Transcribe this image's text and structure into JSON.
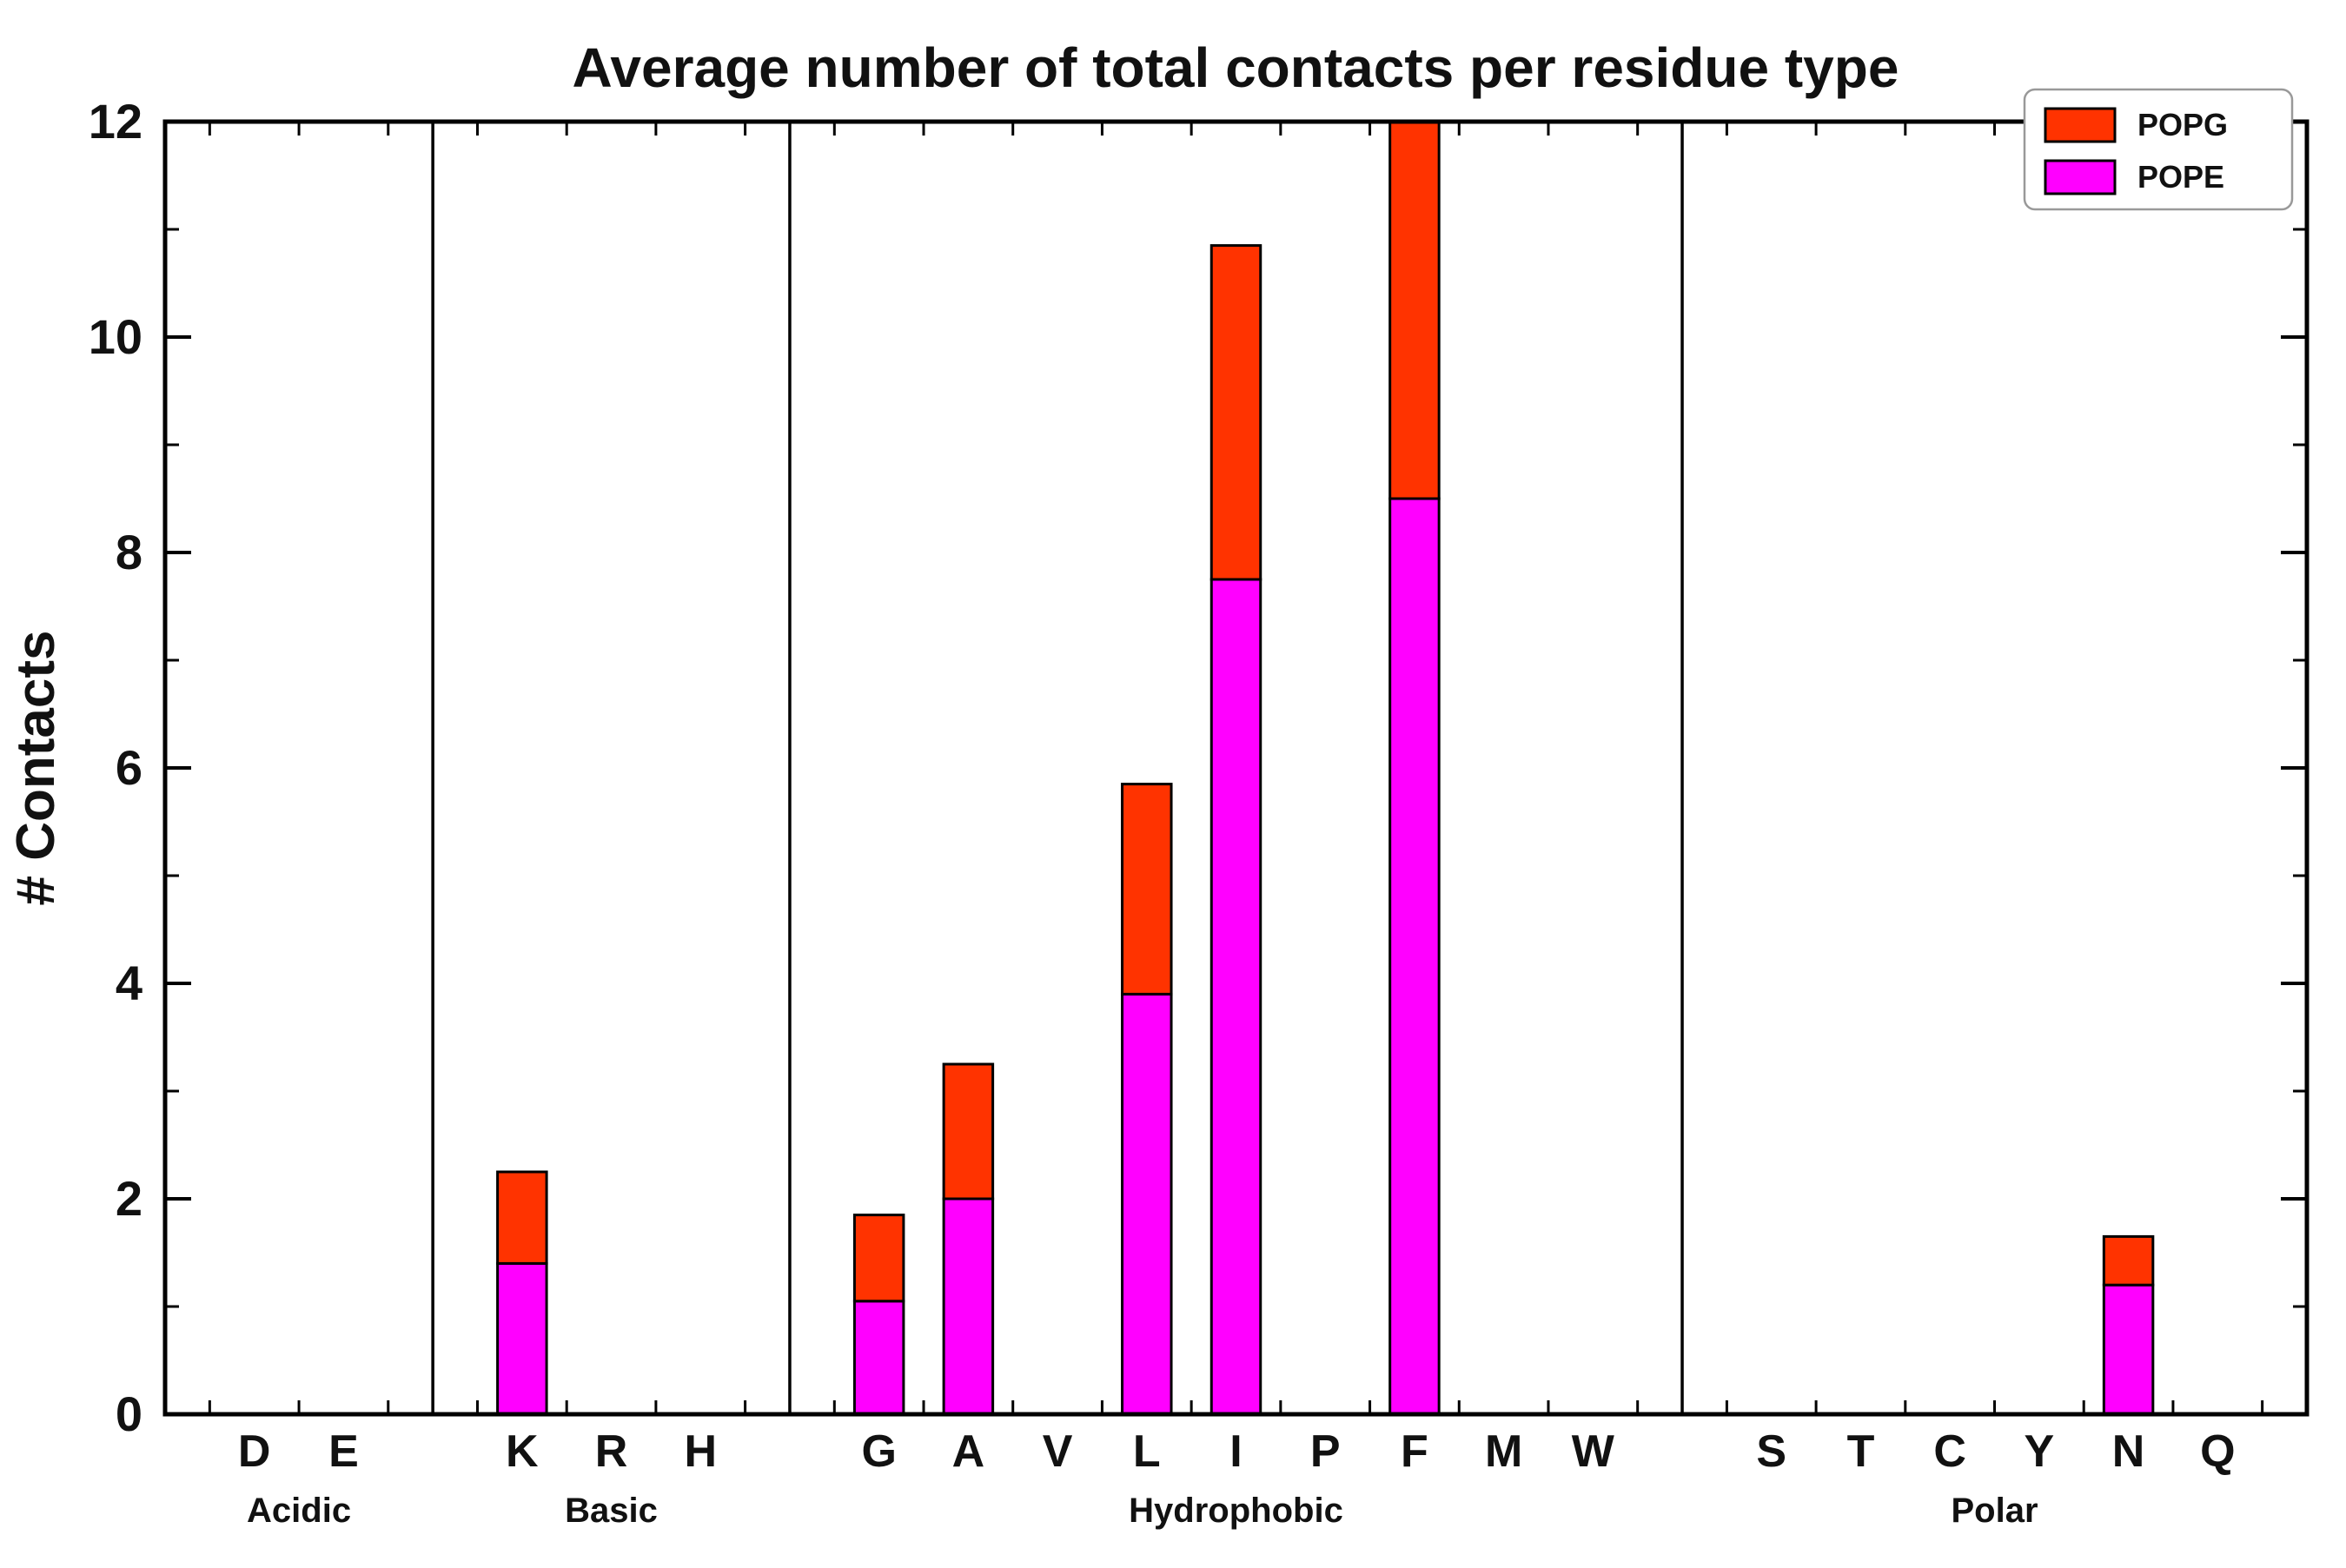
{
  "figure": {
    "background": "#ffffff"
  },
  "chart_data": {
    "type": "bar",
    "stacked": true,
    "title": "Average number of total contacts per residue type",
    "xlabel": "",
    "ylabel": "# Contacts",
    "ylim": [
      0,
      12
    ],
    "yticks": [
      0,
      2,
      4,
      6,
      8,
      10,
      12
    ],
    "grid": false,
    "legend_position": "upper right",
    "legend": [
      "POPG",
      "POPE"
    ],
    "categories": [
      "D",
      "E",
      "K",
      "R",
      "H",
      "G",
      "A",
      "V",
      "L",
      "I",
      "P",
      "F",
      "M",
      "W",
      "S",
      "T",
      "C",
      "Y",
      "N",
      "Q"
    ],
    "groups": [
      {
        "label": "Acidic",
        "categories": [
          "D",
          "E"
        ]
      },
      {
        "label": "Basic",
        "categories": [
          "K",
          "R",
          "H"
        ]
      },
      {
        "label": "Hydrophobic",
        "categories": [
          "G",
          "A",
          "V",
          "L",
          "I",
          "P",
          "F",
          "M",
          "W"
        ]
      },
      {
        "label": "Polar",
        "categories": [
          "S",
          "T",
          "C",
          "Y",
          "N",
          "Q"
        ]
      }
    ],
    "series": [
      {
        "name": "POPE",
        "color": "#FF00FF",
        "values": [
          0,
          0,
          1.4,
          0,
          0,
          1.05,
          2.0,
          0,
          3.9,
          7.75,
          0,
          8.5,
          0,
          0,
          0,
          0,
          0,
          0,
          1.2,
          0
        ]
      },
      {
        "name": "POPG",
        "color": "#FF3300",
        "values": [
          0,
          0,
          0.85,
          0,
          0,
          0.8,
          1.25,
          0,
          1.95,
          3.1,
          0,
          3.5,
          0,
          0,
          0,
          0,
          0,
          0,
          0.45,
          0
        ]
      }
    ],
    "totals_note": "stacked totals: K=2.25, G=1.85, A=3.25, L=5.85, I=10.85, F=12.0, N=1.65",
    "edge_color": "#000000"
  }
}
